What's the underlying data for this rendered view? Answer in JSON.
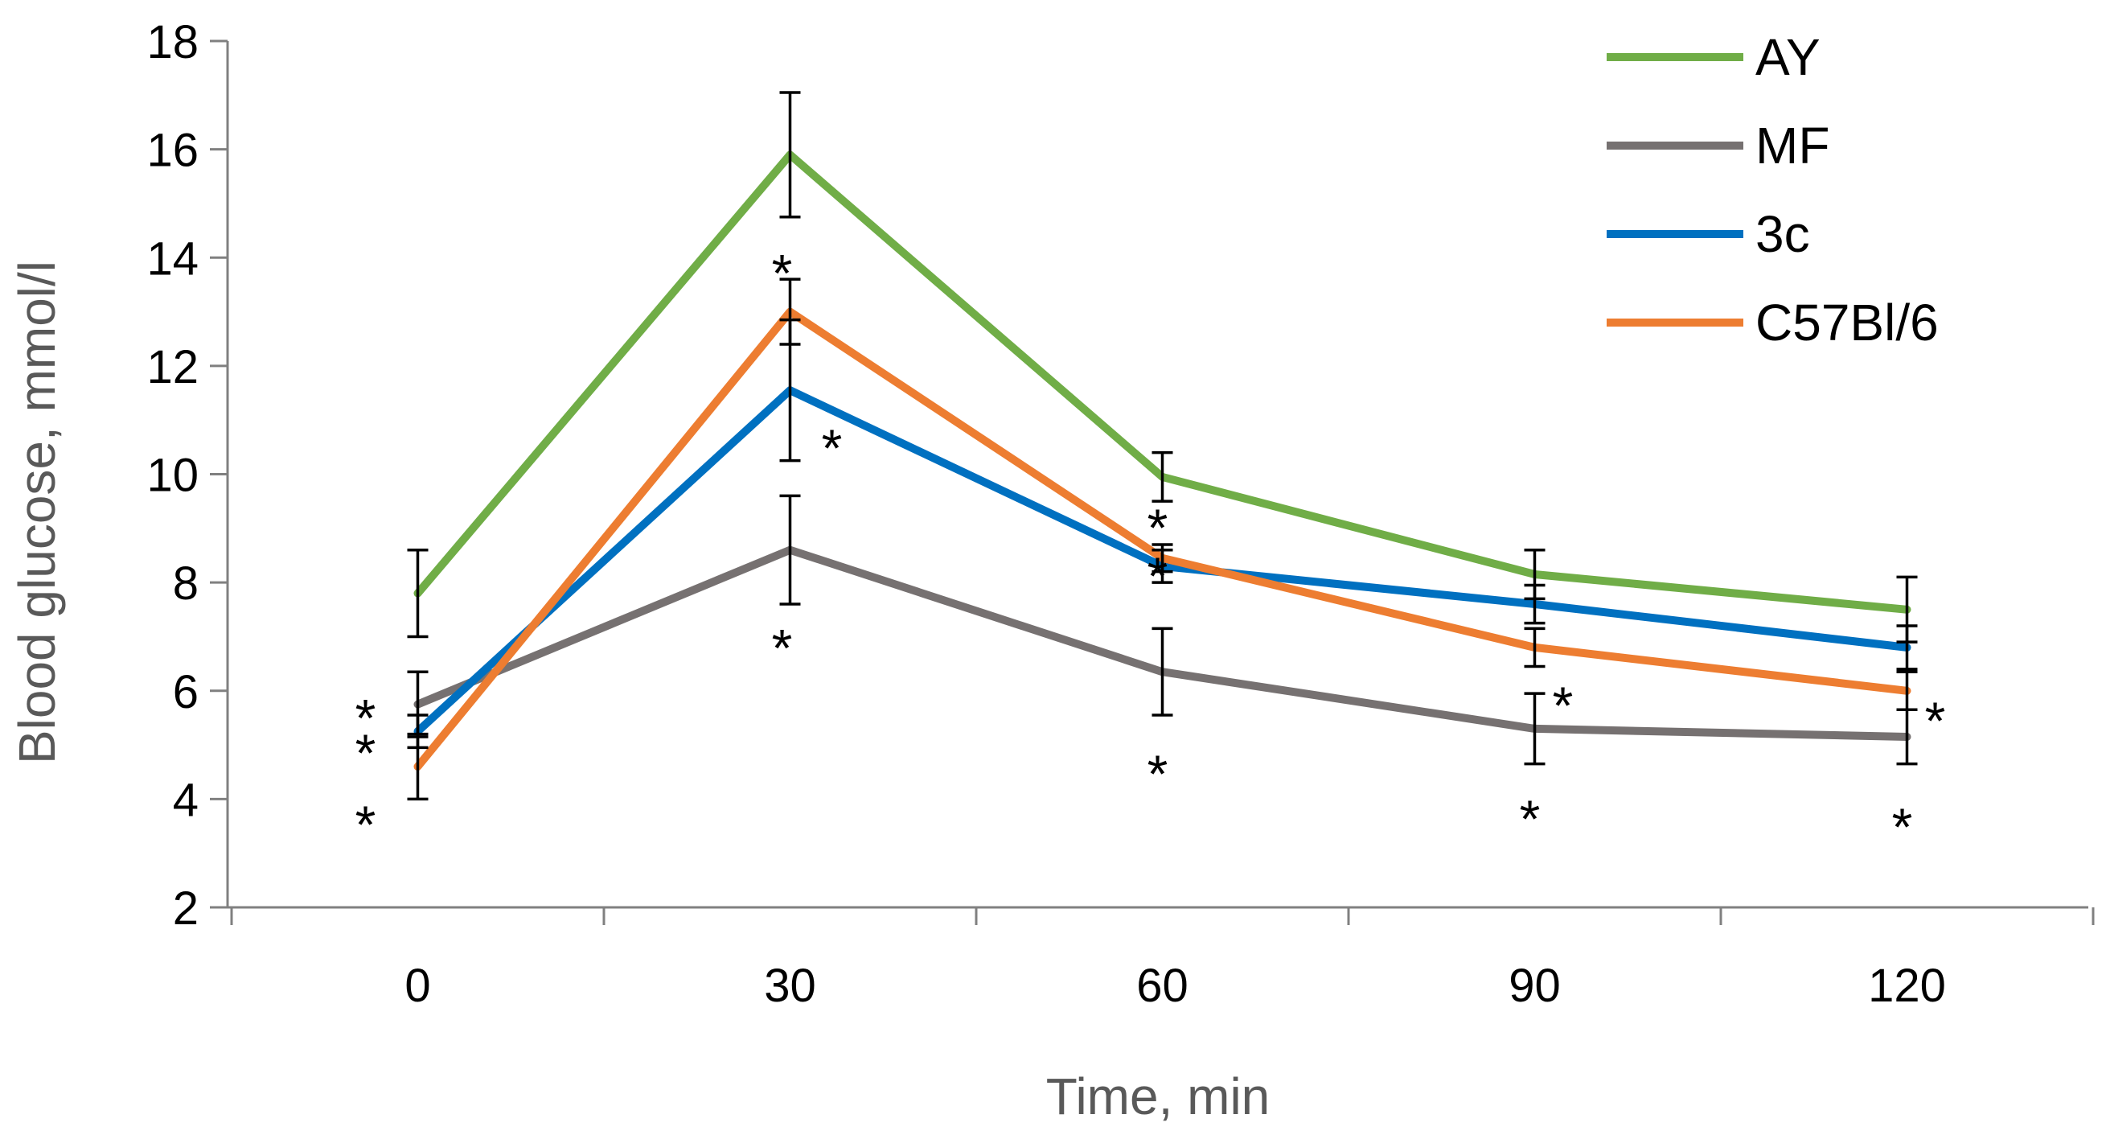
{
  "chart_data": {
    "type": "line",
    "title": "",
    "xlabel": "Time, min",
    "ylabel": "Blood glucose, mmol/l",
    "ylim": [
      2,
      18
    ],
    "yticks": [
      2,
      4,
      6,
      8,
      10,
      12,
      14,
      16,
      18
    ],
    "categories": [
      "0",
      "30",
      "60",
      "90",
      "120"
    ],
    "grid": false,
    "legend_position": "top-right",
    "series": [
      {
        "name": "AY",
        "color": "#70AD47",
        "values": [
          7.8,
          15.9,
          9.95,
          8.15,
          7.5
        ],
        "errors": [
          0.8,
          1.15,
          0.45,
          0.45,
          0.6
        ],
        "significance": [
          "",
          "",
          "",
          "",
          ""
        ]
      },
      {
        "name": "MF",
        "color": "#767171",
        "values": [
          5.75,
          8.6,
          6.35,
          5.3,
          5.15
        ],
        "errors": [
          0.6,
          1.0,
          0.8,
          0.65,
          0.5
        ],
        "significance": [
          "*",
          "*",
          "*",
          "*",
          "*"
        ]
      },
      {
        "name": "3c",
        "color": "#0070C0",
        "values": [
          5.25,
          11.55,
          8.3,
          7.6,
          6.8
        ],
        "errors": [
          0.3,
          1.3,
          0.3,
          0.35,
          0.4
        ],
        "significance": [
          "*",
          "*",
          "*",
          "",
          ""
        ]
      },
      {
        "name": "C57Bl/6",
        "color": "#ED7D31",
        "values": [
          4.6,
          13.0,
          8.45,
          6.8,
          6.0
        ],
        "errors": [
          0.6,
          0.6,
          0.25,
          0.35,
          0.35
        ],
        "significance": [
          "*",
          "*",
          "*",
          "*",
          "*"
        ]
      }
    ]
  }
}
